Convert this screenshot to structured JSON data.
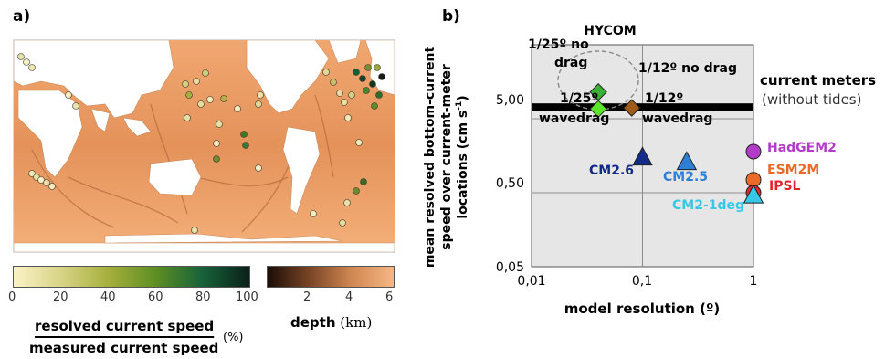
{
  "panel_a": {
    "label": "a)",
    "colorbar_speed": {
      "ticks": [
        "0",
        "20",
        "40",
        "60",
        "80",
        "100"
      ],
      "colors": [
        "#fbf2c6",
        "#d8d487",
        "#a6b03d",
        "#5f8f22",
        "#17623a",
        "#0a2018"
      ]
    },
    "colorbar_depth": {
      "ticks": [
        "2",
        "4",
        "6"
      ],
      "label_main": "depth",
      "label_unit": "(km)",
      "colors": [
        "#1a0d06",
        "#7a4526",
        "#d08752",
        "#f6b785"
      ]
    },
    "ratio": {
      "numerator": "resolved current speed",
      "denominator": "measured current speed",
      "unit": "(%)"
    }
  },
  "panel_b": {
    "label": "b)",
    "hycom_label": "HYCOM",
    "current_meters_label": "current meters",
    "without_tides_label": "(without tides)",
    "labels": {
      "nodrag_25_l1": "1/25º no",
      "nodrag_25_l2": "drag",
      "nodrag_12": "1/12º no drag",
      "wavedrag_25_l1": "1/25º",
      "wavedrag_25_l2": "wavedrag",
      "wavedrag_12_l1": "1/12º",
      "wavedrag_12_l2": "wavedrag",
      "cm26": "CM2.6",
      "cm25": "CM2.5",
      "cm21deg": "CM2-1deg",
      "hadgem2": "HadGEM2",
      "esm2m": "ESM2M",
      "ipsl": "IPSL"
    }
  },
  "chart_data": {
    "type": "scatter",
    "xlabel": "model resolution (º)",
    "ylabel_line1": "mean resolved bottom-current",
    "ylabel_line2": "speed over current-meter",
    "ylabel_line3": "locations (cm s",
    "ylabel_sup": "-1",
    "ylabel_end": ")",
    "xscale": "log",
    "yscale": "log",
    "xlim": [
      0.01,
      1
    ],
    "ylim": [
      0.05,
      50
    ],
    "xticks": [
      "0,01",
      "0,1",
      "1"
    ],
    "yticks": [
      "0,05",
      "0,50",
      "5,00"
    ],
    "grid": true,
    "current_meters_value": 7.2,
    "series": [
      {
        "name": "1/25º no drag",
        "x": 0.04,
        "y": 11.5,
        "marker": "diamond",
        "color": "#3cb034"
      },
      {
        "name": "1/12º no drag",
        "x": 0.08,
        "y": 7.0,
        "marker": "diamond",
        "color": "#a05a1a"
      },
      {
        "name": "1/25º wavedrag",
        "x": 0.04,
        "y": 6.8,
        "marker": "diamond",
        "color": "#5be62a"
      },
      {
        "name": "CM2.6",
        "x": 0.1,
        "y": 1.5,
        "marker": "triangle",
        "color": "#142a8a"
      },
      {
        "name": "CM2.5",
        "x": 0.25,
        "y": 1.3,
        "marker": "triangle",
        "color": "#2f7fd6"
      },
      {
        "name": "HadGEM2",
        "x": 1.0,
        "y": 1.8,
        "marker": "circle",
        "color": "#b23cc7"
      },
      {
        "name": "ESM2M",
        "x": 1.0,
        "y": 0.75,
        "marker": "circle",
        "color": "#ea6a2a"
      },
      {
        "name": "IPSL",
        "x": 1.0,
        "y": 0.5,
        "marker": "circle",
        "color": "#e1252a"
      },
      {
        "name": "CM2-1deg",
        "x": 1.0,
        "y": 0.46,
        "marker": "triangle",
        "color": "#36c8e6"
      }
    ]
  }
}
